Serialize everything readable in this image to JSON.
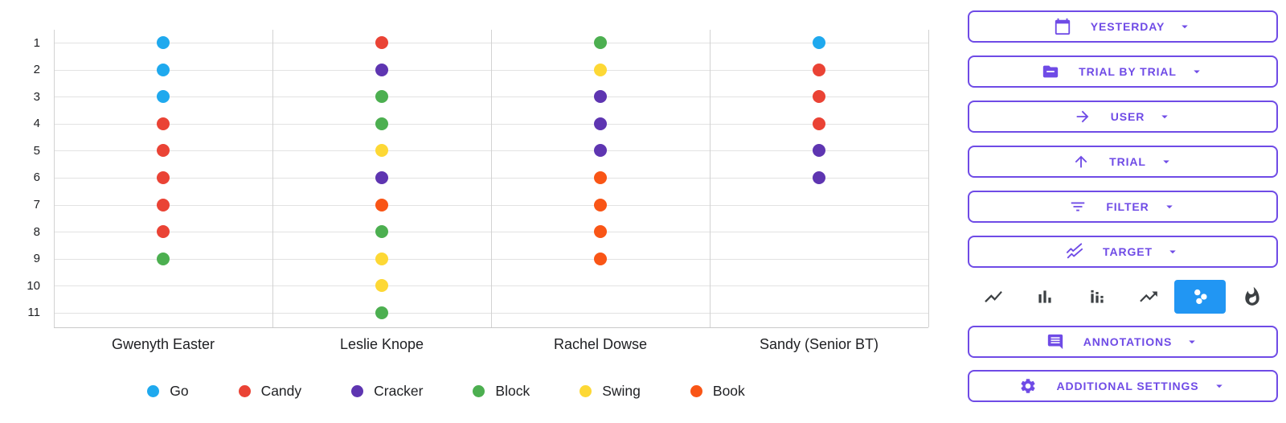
{
  "colors": {
    "accent": "#6F4BE6",
    "selected_chart_bg": "#2196F3",
    "chart_icon_gray": "#3C4043",
    "grid_horizontal": "#E2E2E2",
    "grid_vertical": "#D2D2D2"
  },
  "chart_data": {
    "type": "scatter",
    "title": "",
    "xlabel": "",
    "ylabel": "",
    "grid": true,
    "legend_position": "bottom",
    "row_labels": [
      "1",
      "2",
      "3",
      "4",
      "5",
      "6",
      "7",
      "8",
      "9",
      "10",
      "11"
    ],
    "categories": [
      "Gwenyth Easter",
      "Leslie Knope",
      "Rachel Dowse",
      "Sandy (Senior BT)"
    ],
    "legend": [
      {
        "label": "Go",
        "color": "#1FA9EE"
      },
      {
        "label": "Candy",
        "color": "#EA4335"
      },
      {
        "label": "Cracker",
        "color": "#5E35B1"
      },
      {
        "label": "Block",
        "color": "#4CAF50"
      },
      {
        "label": "Swing",
        "color": "#FDD835"
      },
      {
        "label": "Book",
        "color": "#F95516"
      }
    ],
    "series": [
      {
        "name": "Gwenyth Easter",
        "trials": [
          "Go",
          "Go",
          "Go",
          "Candy",
          "Candy",
          "Candy",
          "Candy",
          "Candy",
          "Block"
        ]
      },
      {
        "name": "Leslie Knope",
        "trials": [
          "Candy",
          "Cracker",
          "Block",
          "Block",
          "Swing",
          "Cracker",
          "Book",
          "Block",
          "Swing",
          "Swing",
          "Block"
        ]
      },
      {
        "name": "Rachel Dowse",
        "trials": [
          "Block",
          "Swing",
          "Cracker",
          "Cracker",
          "Cracker",
          "Book",
          "Book",
          "Book",
          "Book"
        ]
      },
      {
        "name": "Sandy (Senior BT)",
        "trials": [
          "Go",
          "Candy",
          "Candy",
          "Candy",
          "Cracker",
          "Cracker"
        ]
      }
    ]
  },
  "sidebar": {
    "buttons": [
      {
        "label": "YESTERDAY",
        "icon": "calendar-icon"
      },
      {
        "label": "TRIAL BY TRIAL",
        "icon": "folder-icon"
      },
      {
        "label": "USER",
        "icon": "arrow-right-icon"
      },
      {
        "label": "TRIAL",
        "icon": "arrow-up-icon"
      },
      {
        "label": "FILTER",
        "icon": "filter-icon"
      },
      {
        "label": "TARGET",
        "icon": "multiline-chart-icon"
      }
    ],
    "chart_types": [
      "line",
      "bar",
      "segmented-bar",
      "trending-up",
      "scatter",
      "flame"
    ],
    "selected_chart_type": "scatter",
    "bottom_buttons": [
      {
        "label": "ANNOTATIONS",
        "icon": "comment-icon"
      },
      {
        "label": "ADDITIONAL SETTINGS",
        "icon": "gear-icon"
      }
    ]
  }
}
